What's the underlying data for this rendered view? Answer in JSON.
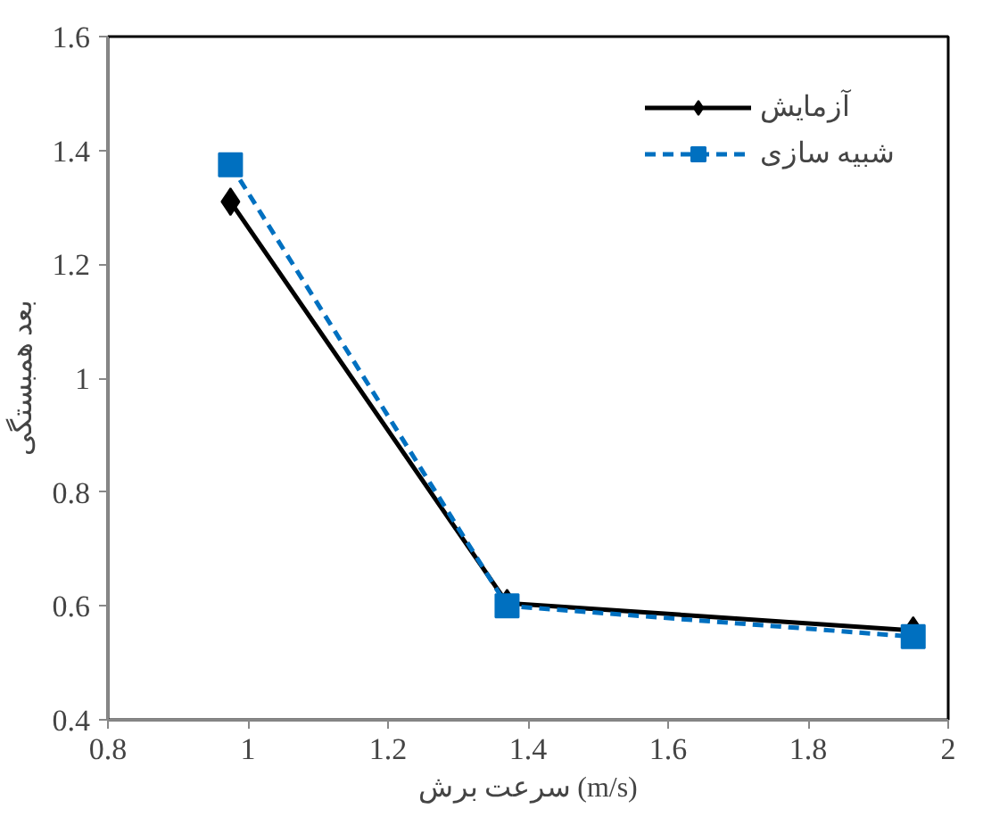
{
  "chart_data": {
    "type": "line",
    "xlabel": "سرعت برش (m/s)",
    "ylabel": "بعد همبستگی",
    "x": [
      0.975,
      1.37,
      1.95
    ],
    "series": [
      {
        "name": "آزمایش",
        "color": "#000000",
        "marker": "diamond",
        "line_style": "solid",
        "values": [
          1.31,
          0.605,
          0.557
        ]
      },
      {
        "name": "شبیه سازی",
        "color": "#0070c0",
        "marker": "square",
        "line_style": "dashed",
        "values": [
          1.375,
          0.6,
          0.546
        ]
      }
    ],
    "xlim": [
      0.8,
      2
    ],
    "xticks": [
      0.8,
      1,
      1.2,
      1.4,
      1.6,
      1.8,
      2
    ],
    "ylim": [
      0.4,
      1.6
    ],
    "yticks": [
      0.4,
      0.6,
      0.8,
      1,
      1.2,
      1.4,
      1.6
    ],
    "grid": false,
    "legend": "top right"
  }
}
